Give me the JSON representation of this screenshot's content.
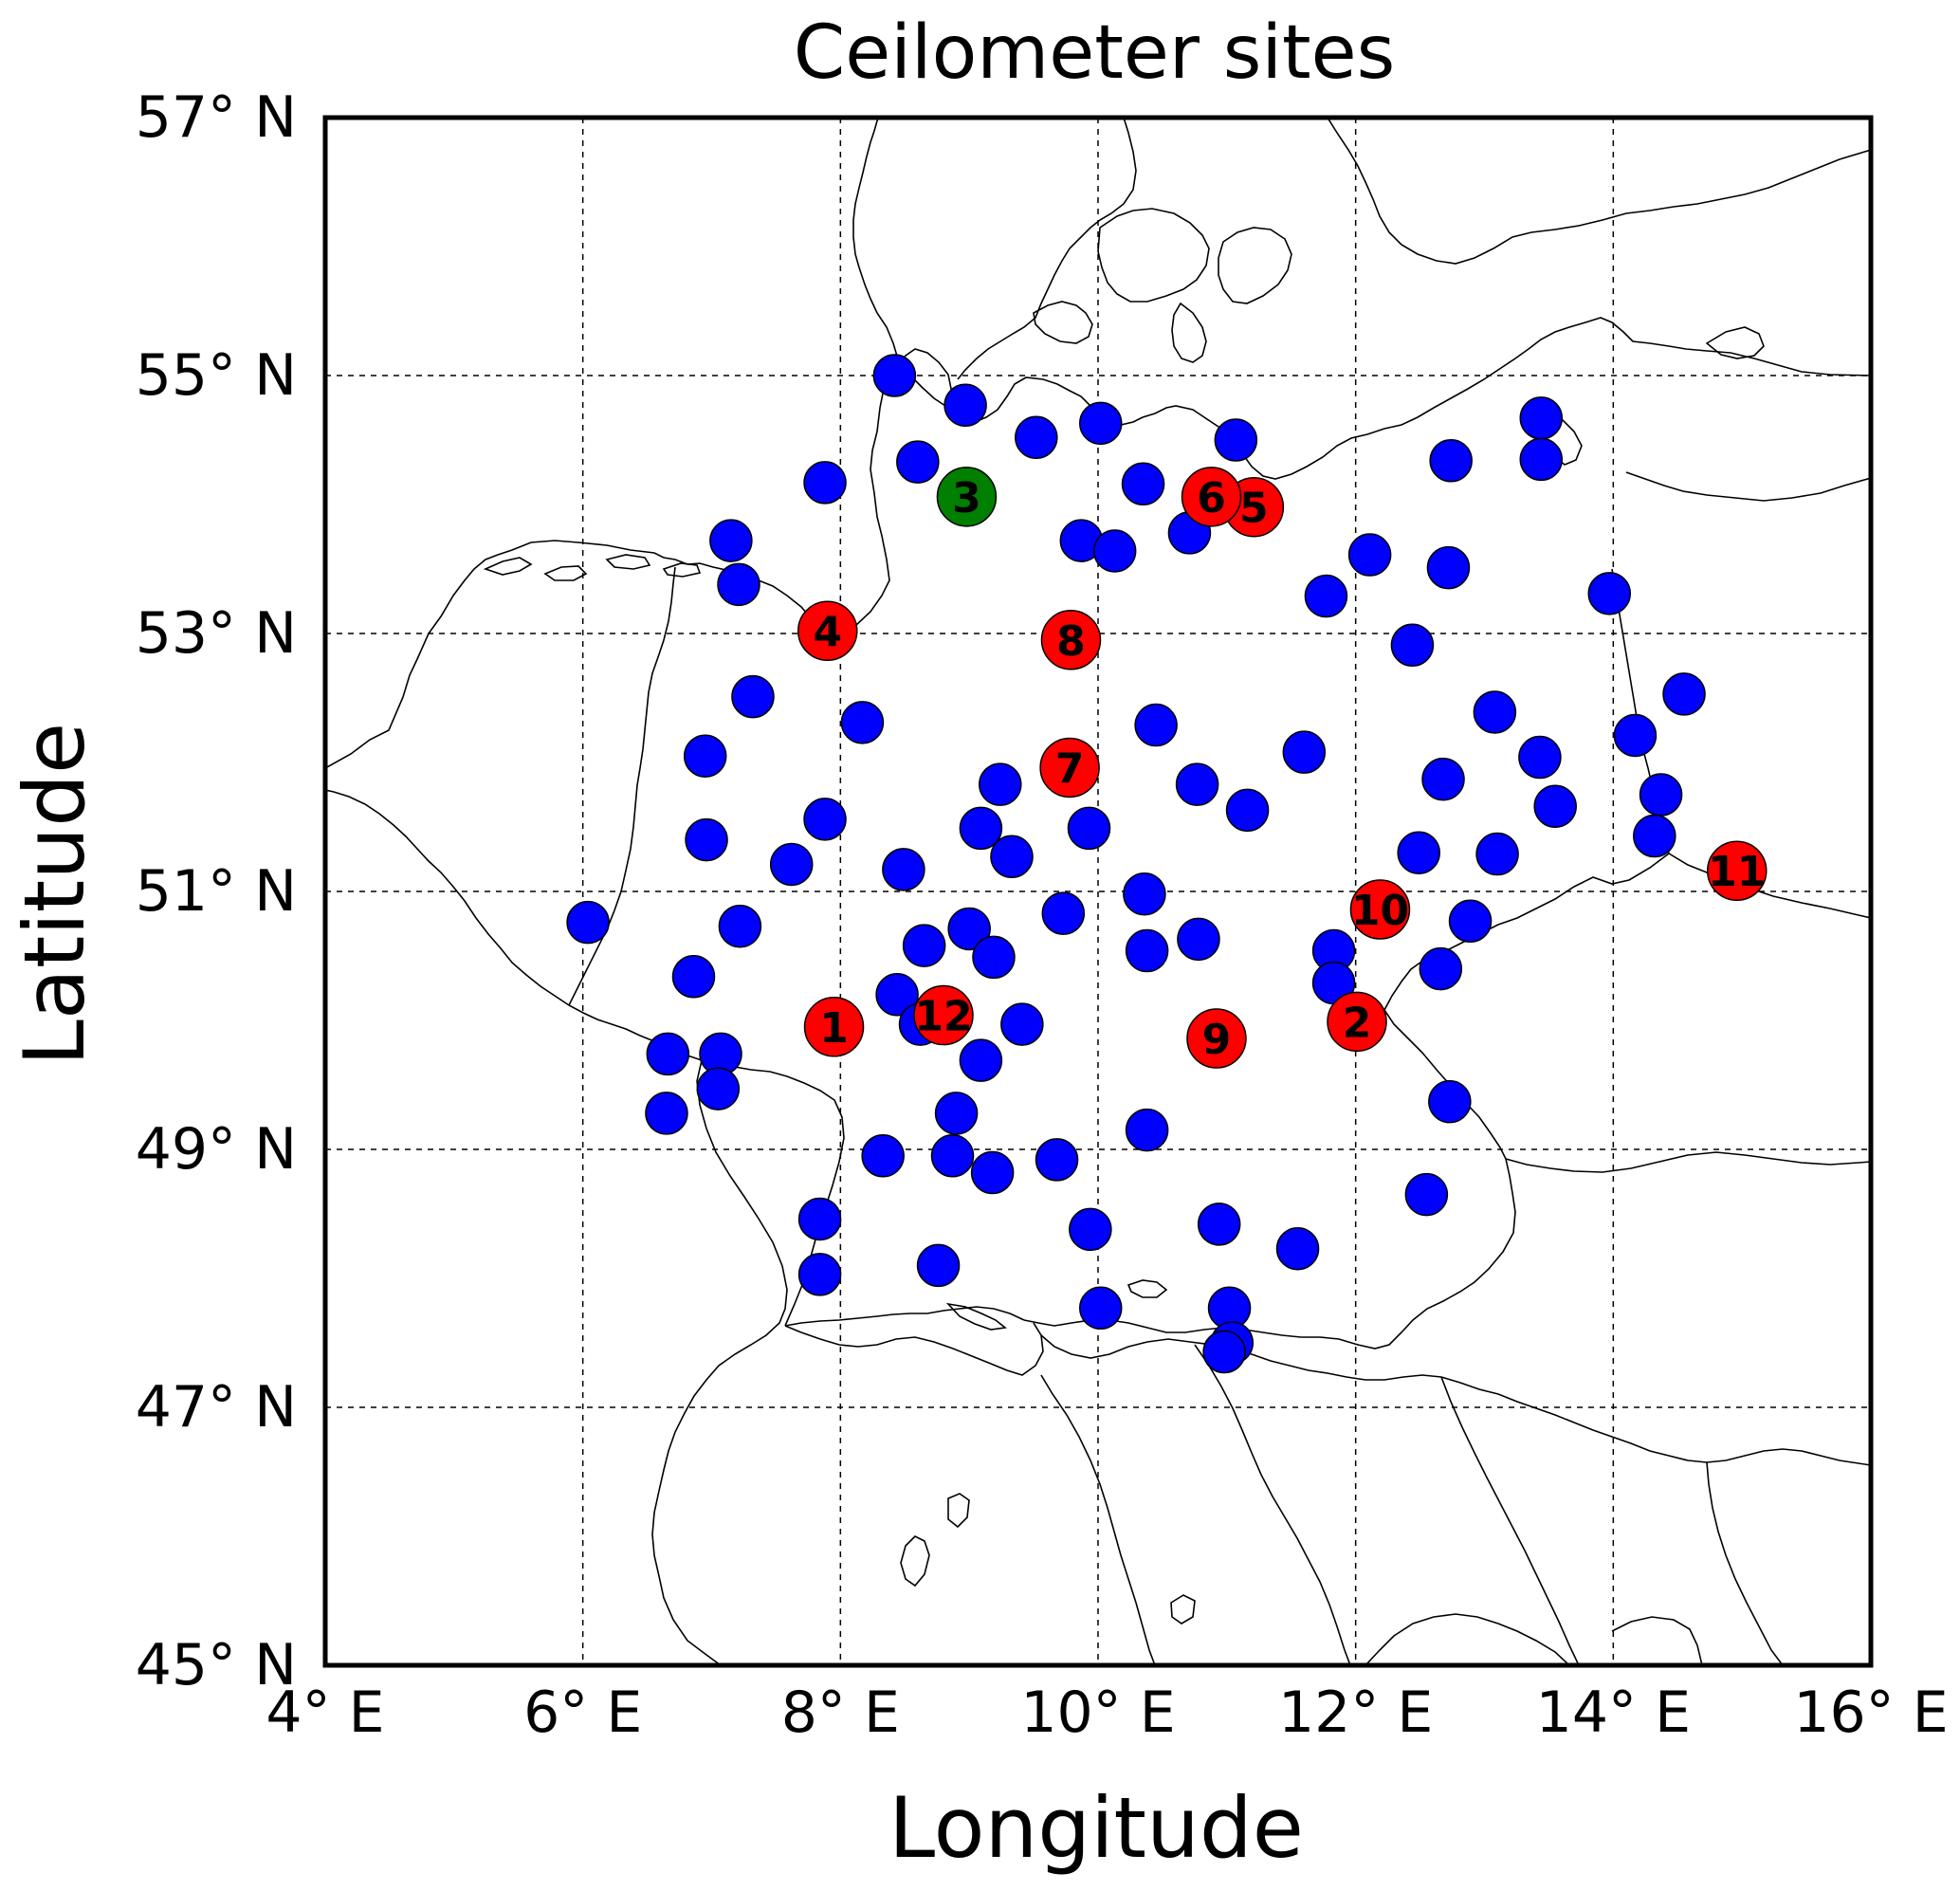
{
  "map": {
    "title": "Ceilometer sites",
    "xlabel": "Longitude",
    "ylabel": "Latitude",
    "xlim": [
      4,
      16
    ],
    "ylim": [
      45,
      57
    ],
    "grid": true,
    "xticks": [
      {
        "value": 4,
        "label": "4° E"
      },
      {
        "value": 6,
        "label": "6° E"
      },
      {
        "value": 8,
        "label": "8° E"
      },
      {
        "value": 10,
        "label": "10° E"
      },
      {
        "value": 12,
        "label": "12° E"
      },
      {
        "value": 14,
        "label": "14° E"
      },
      {
        "value": 16,
        "label": "16° E"
      }
    ],
    "yticks": [
      {
        "value": 45,
        "label": "45° N"
      },
      {
        "value": 47,
        "label": "47° N"
      },
      {
        "value": 49,
        "label": "49° N"
      },
      {
        "value": 51,
        "label": "51° N"
      },
      {
        "value": 53,
        "label": "53° N"
      },
      {
        "value": 55,
        "label": "55° N"
      },
      {
        "value": 57,
        "label": "57° N"
      }
    ],
    "colors": {
      "network_site": "#0000ff",
      "numbered_site": "#ff0000",
      "reference_site": "#007f00"
    }
  },
  "sites_blue": [
    [
      8.42,
      55.0
    ],
    [
      8.97,
      54.77
    ],
    [
      9.52,
      54.52
    ],
    [
      10.02,
      54.63
    ],
    [
      8.6,
      54.33
    ],
    [
      7.88,
      54.17
    ],
    [
      10.35,
      54.16
    ],
    [
      11.07,
      54.5
    ],
    [
      12.74,
      54.34
    ],
    [
      13.44,
      54.67
    ],
    [
      13.44,
      54.35
    ],
    [
      7.15,
      53.72
    ],
    [
      7.21,
      53.38
    ],
    [
      9.87,
      53.72
    ],
    [
      10.13,
      53.64
    ],
    [
      10.71,
      53.78
    ],
    [
      11.77,
      53.29
    ],
    [
      12.11,
      53.61
    ],
    [
      12.72,
      53.51
    ],
    [
      13.97,
      53.31
    ],
    [
      12.44,
      52.91
    ],
    [
      7.32,
      52.51
    ],
    [
      8.17,
      52.31
    ],
    [
      10.45,
      52.29
    ],
    [
      6.95,
      52.05
    ],
    [
      11.6,
      52.08
    ],
    [
      13.08,
      52.39
    ],
    [
      13.43,
      52.04
    ],
    [
      14.17,
      52.21
    ],
    [
      14.55,
      52.53
    ],
    [
      14.37,
      51.75
    ],
    [
      9.24,
      51.83
    ],
    [
      10.77,
      51.83
    ],
    [
      11.16,
      51.63
    ],
    [
      12.68,
      51.87
    ],
    [
      13.55,
      51.66
    ],
    [
      14.32,
      51.43
    ],
    [
      6.96,
      51.4
    ],
    [
      7.88,
      51.56
    ],
    [
      7.62,
      51.21
    ],
    [
      9.09,
      51.49
    ],
    [
      9.33,
      51.27
    ],
    [
      9.93,
      51.49
    ],
    [
      8.49,
      51.17
    ],
    [
      12.49,
      51.3
    ],
    [
      13.1,
      51.29
    ],
    [
      10.36,
      50.98
    ],
    [
      9.73,
      50.83
    ],
    [
      6.04,
      50.76
    ],
    [
      7.22,
      50.73
    ],
    [
      9.0,
      50.71
    ],
    [
      10.78,
      50.63
    ],
    [
      8.65,
      50.58
    ],
    [
      9.19,
      50.49
    ],
    [
      10.38,
      50.54
    ],
    [
      11.83,
      50.54
    ],
    [
      12.89,
      50.77
    ],
    [
      6.86,
      50.34
    ],
    [
      11.83,
      50.29
    ],
    [
      8.44,
      50.2
    ],
    [
      12.66,
      50.4
    ],
    [
      8.62,
      49.97
    ],
    [
      9.41,
      49.97
    ],
    [
      6.66,
      49.74
    ],
    [
      7.07,
      49.74
    ],
    [
      9.09,
      49.69
    ],
    [
      7.05,
      49.47
    ],
    [
      12.73,
      49.37
    ],
    [
      6.65,
      49.28
    ],
    [
      8.9,
      49.28
    ],
    [
      10.38,
      49.15
    ],
    [
      8.33,
      48.95
    ],
    [
      8.87,
      48.95
    ],
    [
      9.18,
      48.82
    ],
    [
      9.68,
      48.92
    ],
    [
      12.55,
      48.65
    ],
    [
      7.84,
      48.46
    ],
    [
      9.94,
      48.38
    ],
    [
      10.94,
      48.42
    ],
    [
      11.55,
      48.23
    ],
    [
      7.84,
      48.03
    ],
    [
      8.76,
      48.1
    ],
    [
      10.02,
      47.77
    ],
    [
      11.02,
      47.77
    ],
    [
      11.04,
      47.5
    ],
    [
      10.98,
      47.43
    ]
  ],
  "sites_numbered": [
    {
      "label": "1",
      "lon": 7.95,
      "lat": 49.95
    },
    {
      "label": "2",
      "lon": 12.01,
      "lat": 49.99
    },
    {
      "label": "4",
      "lon": 7.9,
      "lat": 53.02
    },
    {
      "label": "5",
      "lon": 11.21,
      "lat": 53.98
    },
    {
      "label": "6",
      "lon": 10.88,
      "lat": 54.06
    },
    {
      "label": "7",
      "lon": 9.78,
      "lat": 51.96
    },
    {
      "label": "8",
      "lon": 9.79,
      "lat": 52.95
    },
    {
      "label": "9",
      "lon": 10.92,
      "lat": 49.86
    },
    {
      "label": "10",
      "lon": 12.19,
      "lat": 50.86
    },
    {
      "label": "11",
      "lon": 14.96,
      "lat": 51.16
    },
    {
      "label": "12",
      "lon": 8.8,
      "lat": 50.04
    }
  ],
  "sites_reference": [
    {
      "label": "3",
      "lon": 8.98,
      "lat": 54.06
    }
  ]
}
